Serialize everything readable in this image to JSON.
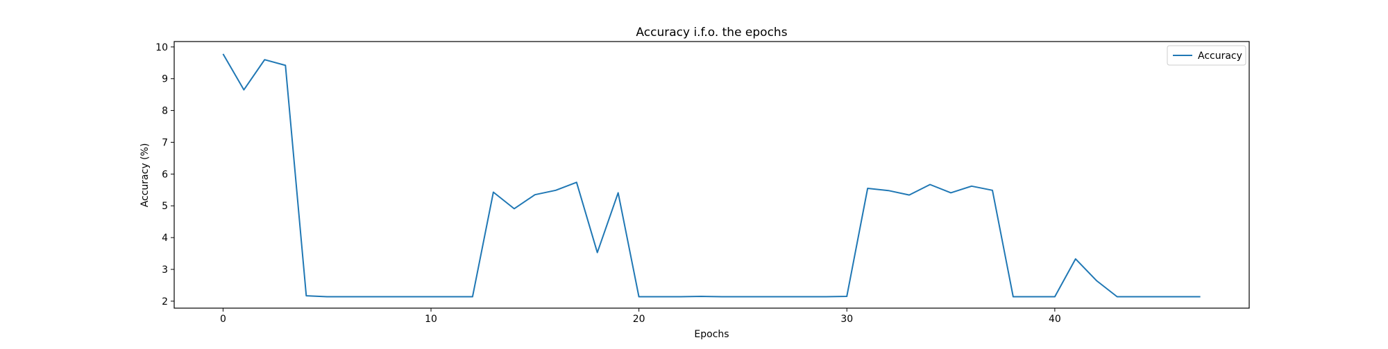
{
  "chart_data": {
    "type": "line",
    "title": "Accuracy i.f.o. the epochs",
    "xlabel": "Epochs",
    "ylabel": "Accuracy (%)",
    "xlim": [
      -2.35,
      49.35
    ],
    "ylim": [
      1.78,
      10.17
    ],
    "x_ticks": [
      0,
      10,
      20,
      30,
      40
    ],
    "y_ticks": [
      2,
      3,
      4,
      5,
      6,
      7,
      8,
      9,
      10
    ],
    "grid": false,
    "legend": "top-right",
    "series": [
      {
        "name": "Accuracy",
        "color": "#1f77b4",
        "x": [
          0,
          1,
          2,
          3,
          4,
          5,
          6,
          7,
          8,
          9,
          10,
          11,
          12,
          13,
          14,
          15,
          16,
          17,
          18,
          19,
          20,
          21,
          22,
          23,
          24,
          25,
          26,
          27,
          28,
          29,
          30,
          31,
          32,
          33,
          34,
          35,
          36,
          37,
          38,
          39,
          40,
          41,
          42,
          43,
          44,
          45,
          46,
          47
        ],
        "y": [
          9.78,
          8.65,
          9.6,
          9.42,
          2.17,
          2.14,
          2.14,
          2.14,
          2.14,
          2.14,
          2.14,
          2.14,
          2.14,
          5.43,
          4.91,
          5.35,
          5.49,
          5.74,
          3.53,
          5.41,
          2.14,
          2.14,
          2.14,
          2.15,
          2.14,
          2.14,
          2.14,
          2.14,
          2.14,
          2.14,
          2.15,
          5.55,
          5.48,
          5.34,
          5.67,
          5.41,
          5.62,
          5.49,
          2.14,
          2.14,
          2.14,
          3.33,
          2.65,
          2.14,
          2.14,
          2.14,
          2.14,
          2.14
        ]
      }
    ]
  }
}
